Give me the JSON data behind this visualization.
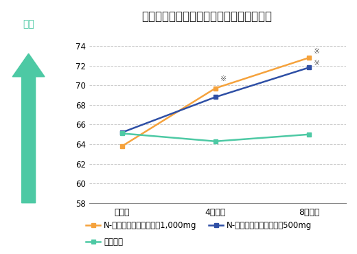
{
  "title": "臨床評点（治療成績判定基準値）の総得点",
  "x_labels": [
    "摂取前",
    "4週間後",
    "8週間後"
  ],
  "x_positions": [
    0,
    1,
    2
  ],
  "series": [
    {
      "label": "N-アセチルグルコサミン1,000mg",
      "values": [
        63.8,
        69.7,
        72.8
      ],
      "color": "#F5A23C",
      "marker": "s",
      "marker_color": "#F5A23C"
    },
    {
      "label": "N-アセチルグルコサミン500mg",
      "values": [
        65.2,
        68.8,
        71.8
      ],
      "color": "#2E4FA5",
      "marker": "s",
      "marker_color": "#2E4FA5"
    },
    {
      "label": "プラセボ",
      "values": [
        65.1,
        64.3,
        65.0
      ],
      "color": "#4DC9A4",
      "marker": "s",
      "marker_color": "#4DC9A4"
    }
  ],
  "ylim": [
    58,
    74.8
  ],
  "yticks": [
    58,
    60,
    62,
    64,
    66,
    68,
    70,
    72,
    74
  ],
  "grid_color": "#CCCCCC",
  "background_color": "#FFFFFF",
  "annotation_4w": "※",
  "annotation_8w_top": "※",
  "annotation_8w_bot": "※",
  "arrow_color": "#4DC9A4",
  "kaizen_text": "改善",
  "kaizen_color": "#4DC9A4",
  "legend_fontsize": 8.5,
  "title_fontsize": 12
}
